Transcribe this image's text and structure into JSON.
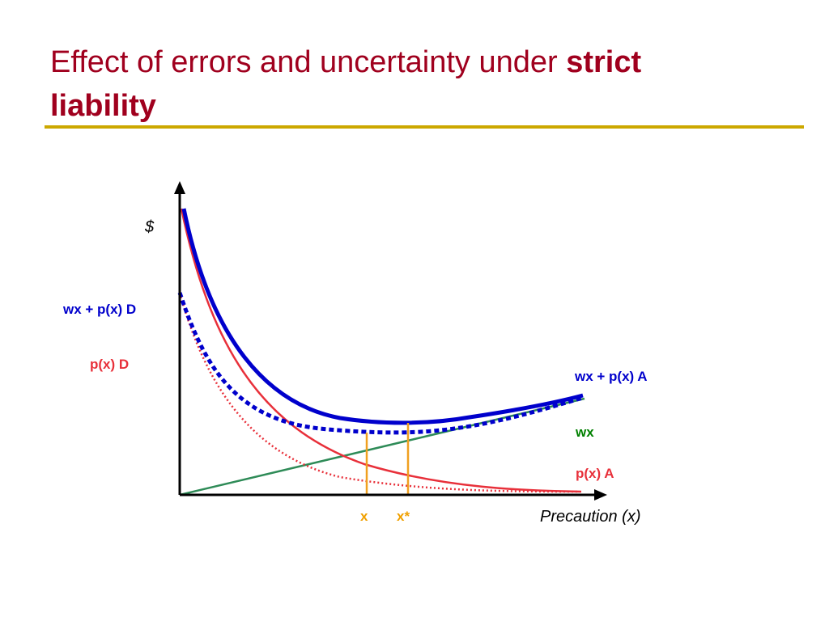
{
  "slide": {
    "title": {
      "text": "Effect of errors and uncertainty under ",
      "bold_1": "strict",
      "bold_2": "liability"
    },
    "colors": {
      "title": "#A0001E",
      "rule": "#CCA800"
    }
  },
  "diagram": {
    "y_axis_label": "$",
    "x_axis_label": "Precaution (x)",
    "labels": {
      "total_cost_d": "wx + p(x) D",
      "expected_loss_d": "p(x) D",
      "total_cost_a": "wx + p(x) A",
      "precaution_cost": "wx",
      "expected_loss_a": "p(x) A",
      "x_marker": "x",
      "x_star_marker": "x*"
    },
    "colors": {
      "total_cost": "#0000CC",
      "expected_loss": "#E8303A",
      "precaution_cost": "#2E8B57",
      "markers": "#F0A020",
      "axes": "#000000"
    }
  }
}
